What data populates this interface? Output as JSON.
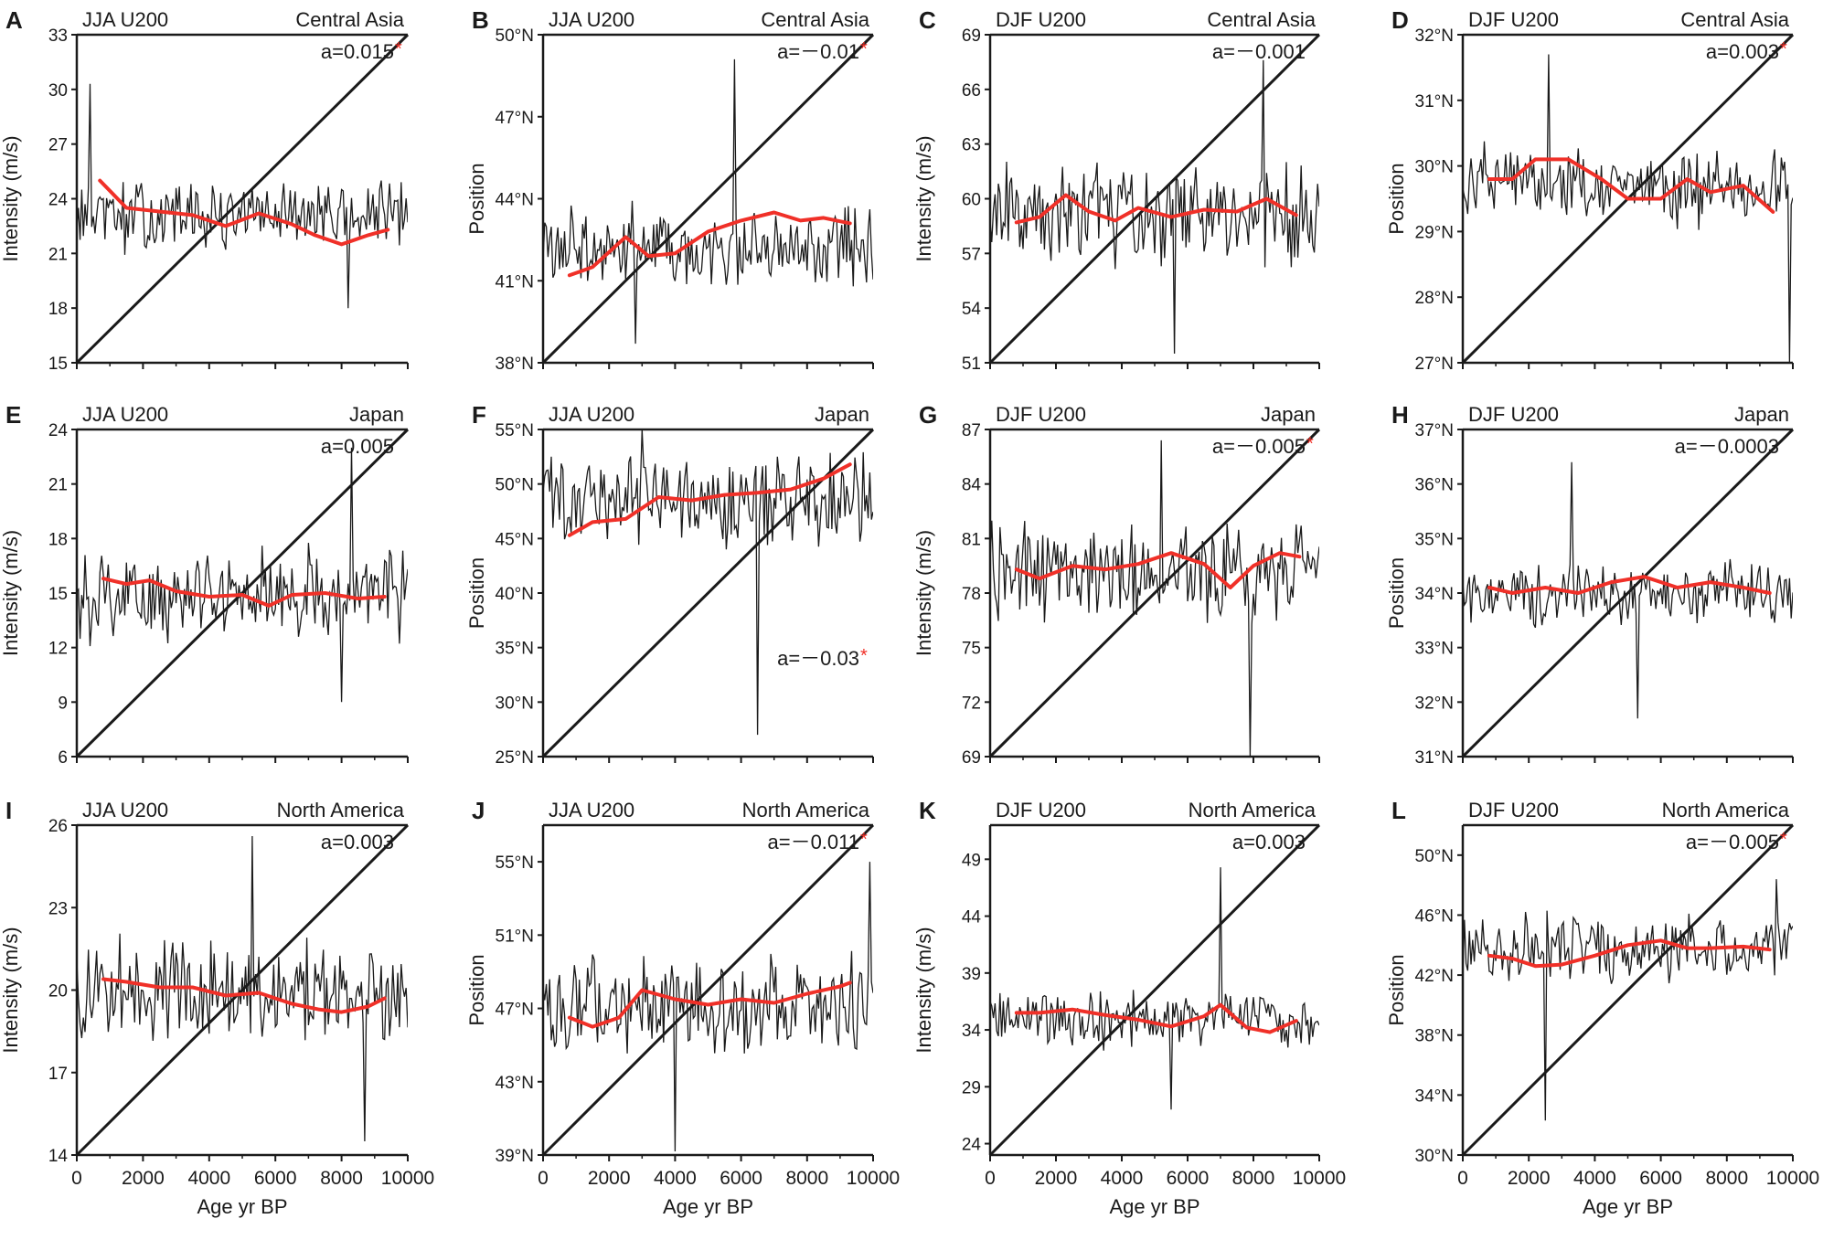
{
  "figure": {
    "xlabel": "Age yr BP"
  },
  "colors": {
    "series": "#1a1a1a",
    "smooth": "#f03028",
    "axis": "#1a1a1a",
    "star": "#f03028"
  },
  "chart_data": [
    {
      "letter": "A",
      "season": "JJA U200",
      "region": "Central Asia",
      "type": "line",
      "ylabel": "Intensity (m/s)",
      "yunit": "",
      "yticks": [
        15,
        18,
        21,
        24,
        27,
        30,
        33
      ],
      "xticks": [
        0,
        2000,
        4000,
        6000,
        8000,
        10000
      ],
      "xlim": [
        0,
        10000
      ],
      "ylim": [
        15,
        33
      ],
      "coef": "a=0.015",
      "star": true,
      "coef_pos": "top",
      "show_x": false,
      "series": {
        "base": 23,
        "amp": 2.3,
        "spike_hi": 30.3,
        "spike_hi_x": 400,
        "spike_lo": 18,
        "spike_lo_x": 8200
      },
      "smooth": [
        [
          700,
          25.0
        ],
        [
          1500,
          23.5
        ],
        [
          2500,
          23.3
        ],
        [
          3500,
          23.1
        ],
        [
          4500,
          22.5
        ],
        [
          5500,
          23.2
        ],
        [
          6500,
          22.6
        ],
        [
          7200,
          22.0
        ],
        [
          8000,
          21.5
        ],
        [
          8800,
          22.0
        ],
        [
          9400,
          22.3
        ]
      ]
    },
    {
      "letter": "B",
      "season": "JJA U200",
      "region": "Central Asia",
      "type": "line",
      "ylabel": "Position",
      "yunit": "°N",
      "yticks": [
        38,
        41,
        44,
        47,
        50
      ],
      "xticks": [
        0,
        2000,
        4000,
        6000,
        8000,
        10000
      ],
      "xlim": [
        0,
        10000
      ],
      "ylim": [
        38,
        50
      ],
      "coef": "a=－0.01",
      "star": true,
      "coef_pos": "top",
      "show_x": false,
      "series": {
        "base": 42.3,
        "amp": 1.7,
        "spike_hi": 49.1,
        "spike_hi_x": 5800,
        "spike_lo": 38.7,
        "spike_lo_x": 2800
      },
      "smooth": [
        [
          800,
          41.2
        ],
        [
          1500,
          41.5
        ],
        [
          2500,
          42.6
        ],
        [
          3200,
          41.9
        ],
        [
          4000,
          42.0
        ],
        [
          5000,
          42.8
        ],
        [
          6000,
          43.2
        ],
        [
          7000,
          43.5
        ],
        [
          7800,
          43.2
        ],
        [
          8500,
          43.3
        ],
        [
          9300,
          43.1
        ]
      ]
    },
    {
      "letter": "C",
      "season": "DJF U200",
      "region": "Central Asia",
      "type": "line",
      "ylabel": "Intensity (m/s)",
      "yunit": "",
      "yticks": [
        51,
        54,
        57,
        60,
        63,
        66,
        69
      ],
      "xticks": [
        0,
        2000,
        4000,
        6000,
        8000,
        10000
      ],
      "xlim": [
        0,
        10000
      ],
      "ylim": [
        51,
        69
      ],
      "coef": "a=－0.001",
      "star": false,
      "coef_pos": "top",
      "show_x": false,
      "series": {
        "base": 59.2,
        "amp": 3.3,
        "spike_hi": 67.6,
        "spike_hi_x": 8300,
        "spike_lo": 51.5,
        "spike_lo_x": 5600
      },
      "smooth": [
        [
          800,
          58.7
        ],
        [
          1500,
          59.0
        ],
        [
          2300,
          60.2
        ],
        [
          3000,
          59.3
        ],
        [
          3800,
          58.8
        ],
        [
          4500,
          59.5
        ],
        [
          5500,
          59.0
        ],
        [
          6500,
          59.4
        ],
        [
          7500,
          59.3
        ],
        [
          8400,
          60.0
        ],
        [
          9300,
          59.1
        ]
      ]
    },
    {
      "letter": "D",
      "season": "DJF U200",
      "region": "Central Asia",
      "type": "line",
      "ylabel": "Position",
      "yunit": "°N",
      "yticks": [
        27,
        28,
        29,
        30,
        31,
        32
      ],
      "xticks": [
        0,
        2000,
        4000,
        6000,
        8000,
        10000
      ],
      "xlim": [
        0,
        10000
      ],
      "ylim": [
        27,
        32
      ],
      "coef": "a=0.003",
      "star": true,
      "coef_pos": "top",
      "show_x": false,
      "series": {
        "base": 29.7,
        "amp": 0.7,
        "spike_hi": 31.7,
        "spike_hi_x": 2600,
        "spike_lo": 27.0,
        "spike_lo_x": 9900
      },
      "smooth": [
        [
          800,
          29.8
        ],
        [
          1500,
          29.8
        ],
        [
          2200,
          30.1
        ],
        [
          3200,
          30.1
        ],
        [
          4200,
          29.8
        ],
        [
          5000,
          29.5
        ],
        [
          6000,
          29.5
        ],
        [
          6800,
          29.8
        ],
        [
          7500,
          29.6
        ],
        [
          8500,
          29.7
        ],
        [
          9400,
          29.3
        ]
      ]
    },
    {
      "letter": "E",
      "season": "JJA U200",
      "region": "Japan",
      "type": "line",
      "ylabel": "Intensity (m/s)",
      "yunit": "",
      "yticks": [
        6,
        9,
        12,
        15,
        18,
        21,
        24
      ],
      "xticks": [
        0,
        2000,
        4000,
        6000,
        8000,
        10000
      ],
      "xlim": [
        0,
        10000
      ],
      "ylim": [
        6,
        24
      ],
      "coef": "a=0.005",
      "star": false,
      "coef_pos": "top",
      "show_x": false,
      "series": {
        "base": 15,
        "amp": 3.0,
        "spike_hi": 23.0,
        "spike_hi_x": 8300,
        "spike_lo": 9.0,
        "spike_lo_x": 8000
      },
      "smooth": [
        [
          800,
          15.8
        ],
        [
          1500,
          15.5
        ],
        [
          2200,
          15.7
        ],
        [
          3000,
          15.1
        ],
        [
          4000,
          14.8
        ],
        [
          5000,
          14.9
        ],
        [
          5800,
          14.3
        ],
        [
          6500,
          14.9
        ],
        [
          7500,
          15.0
        ],
        [
          8500,
          14.7
        ],
        [
          9300,
          14.8
        ]
      ]
    },
    {
      "letter": "F",
      "season": "JJA U200",
      "region": "Japan",
      "type": "line",
      "ylabel": "Position",
      "yunit": "°N",
      "yticks": [
        25,
        30,
        35,
        40,
        45,
        50,
        55
      ],
      "xticks": [
        0,
        2000,
        4000,
        6000,
        8000,
        10000
      ],
      "xlim": [
        0,
        10000
      ],
      "ylim": [
        25,
        55
      ],
      "coef": "a=－0.03",
      "star": true,
      "coef_pos": "mid",
      "show_x": false,
      "series": {
        "base": 48.5,
        "amp": 5.0,
        "spike_hi": 55,
        "spike_hi_x": 3000,
        "spike_lo": 27,
        "spike_lo_x": 6500
      },
      "smooth": [
        [
          800,
          45.3
        ],
        [
          1500,
          46.5
        ],
        [
          2500,
          46.8
        ],
        [
          3500,
          48.8
        ],
        [
          4500,
          48.5
        ],
        [
          5500,
          49.0
        ],
        [
          6500,
          49.2
        ],
        [
          7500,
          49.5
        ],
        [
          8500,
          50.5
        ],
        [
          9300,
          51.8
        ]
      ]
    },
    {
      "letter": "G",
      "season": "DJF U200",
      "region": "Japan",
      "type": "line",
      "ylabel": "Intensity (m/s)",
      "yunit": "",
      "yticks": [
        69,
        72,
        75,
        78,
        81,
        84,
        87
      ],
      "xticks": [
        0,
        2000,
        4000,
        6000,
        8000,
        10000
      ],
      "xlim": [
        0,
        10000
      ],
      "ylim": [
        69,
        87
      ],
      "coef": "a=－0.005",
      "star": true,
      "coef_pos": "top",
      "show_x": false,
      "series": {
        "base": 79.2,
        "amp": 3.2,
        "spike_hi": 86.4,
        "spike_hi_x": 5200,
        "spike_lo": 69.0,
        "spike_lo_x": 7900
      },
      "smooth": [
        [
          800,
          79.3
        ],
        [
          1500,
          78.8
        ],
        [
          2500,
          79.5
        ],
        [
          3500,
          79.3
        ],
        [
          4500,
          79.6
        ],
        [
          5500,
          80.2
        ],
        [
          6500,
          79.6
        ],
        [
          7300,
          78.3
        ],
        [
          8000,
          79.5
        ],
        [
          8800,
          80.2
        ],
        [
          9400,
          80.0
        ]
      ]
    },
    {
      "letter": "H",
      "season": "DJF U200",
      "region": "Japan",
      "type": "line",
      "ylabel": "Position",
      "yunit": "°N",
      "yticks": [
        31,
        32,
        33,
        34,
        35,
        36,
        37
      ],
      "xticks": [
        0,
        2000,
        4000,
        6000,
        8000,
        10000
      ],
      "xlim": [
        0,
        10000
      ],
      "ylim": [
        31,
        37
      ],
      "coef": "a=－0.0003",
      "star": false,
      "coef_pos": "top",
      "show_x": false,
      "series": {
        "base": 34.0,
        "amp": 0.7,
        "spike_hi": 36.4,
        "spike_hi_x": 3300,
        "spike_lo": 31.7,
        "spike_lo_x": 5300
      },
      "smooth": [
        [
          800,
          34.1
        ],
        [
          1500,
          34.0
        ],
        [
          2500,
          34.1
        ],
        [
          3500,
          34.0
        ],
        [
          4500,
          34.2
        ],
        [
          5500,
          34.3
        ],
        [
          6500,
          34.1
        ],
        [
          7500,
          34.2
        ],
        [
          8500,
          34.1
        ],
        [
          9300,
          34.0
        ]
      ]
    },
    {
      "letter": "I",
      "season": "JJA U200",
      "region": "North America",
      "type": "line",
      "ylabel": "Intensity (m/s)",
      "yunit": "",
      "yticks": [
        14,
        17,
        20,
        23,
        26
      ],
      "xticks": [
        0,
        2000,
        4000,
        6000,
        8000,
        10000
      ],
      "xlim": [
        0,
        10000
      ],
      "ylim": [
        14,
        26
      ],
      "coef": "a=0.003",
      "star": false,
      "coef_pos": "top",
      "show_x": true,
      "series": {
        "base": 20.0,
        "amp": 2.2,
        "spike_hi": 25.6,
        "spike_hi_x": 5300,
        "spike_lo": 14.5,
        "spike_lo_x": 8700
      },
      "smooth": [
        [
          800,
          20.4
        ],
        [
          1500,
          20.3
        ],
        [
          2500,
          20.1
        ],
        [
          3500,
          20.1
        ],
        [
          4500,
          19.8
        ],
        [
          5500,
          19.9
        ],
        [
          6500,
          19.5
        ],
        [
          7300,
          19.3
        ],
        [
          8000,
          19.2
        ],
        [
          8800,
          19.4
        ],
        [
          9300,
          19.7
        ]
      ]
    },
    {
      "letter": "J",
      "season": "JJA U200",
      "region": "North America",
      "type": "line",
      "ylabel": "Position",
      "yunit": "°N",
      "yticks": [
        39,
        43,
        47,
        51,
        55
      ],
      "xticks": [
        0,
        2000,
        4000,
        6000,
        8000,
        10000
      ],
      "xlim": [
        0,
        10000
      ],
      "ylim": [
        39,
        57
      ],
      "coef": "a=－0.011",
      "star": true,
      "coef_pos": "top",
      "show_x": true,
      "series": {
        "base": 47.2,
        "amp": 3.2,
        "spike_hi": 55.0,
        "spike_hi_x": 9900,
        "spike_lo": 39.2,
        "spike_lo_x": 4000
      },
      "smooth": [
        [
          800,
          46.5
        ],
        [
          1500,
          46.0
        ],
        [
          2300,
          46.5
        ],
        [
          3000,
          48.0
        ],
        [
          4000,
          47.5
        ],
        [
          5000,
          47.2
        ],
        [
          6000,
          47.5
        ],
        [
          7000,
          47.3
        ],
        [
          8000,
          47.8
        ],
        [
          9000,
          48.2
        ],
        [
          9300,
          48.4
        ]
      ]
    },
    {
      "letter": "K",
      "season": "DJF U200",
      "region": "North America",
      "type": "line",
      "ylabel": "Intensity (m/s)",
      "yunit": "",
      "yticks": [
        24,
        29,
        34,
        39,
        44,
        49
      ],
      "xticks": [
        0,
        2000,
        4000,
        6000,
        8000,
        10000
      ],
      "xlim": [
        0,
        10000
      ],
      "ylim": [
        23,
        52
      ],
      "coef": "a=0.003",
      "star": false,
      "coef_pos": "top",
      "show_x": true,
      "series": {
        "base": 35.0,
        "amp": 3.0,
        "spike_hi": 48.3,
        "spike_hi_x": 7000,
        "spike_lo": 27.0,
        "spike_lo_x": 5500
      },
      "smooth": [
        [
          800,
          35.5
        ],
        [
          1500,
          35.5
        ],
        [
          2500,
          35.8
        ],
        [
          3500,
          35.3
        ],
        [
          4500,
          34.9
        ],
        [
          5500,
          34.3
        ],
        [
          6500,
          35.2
        ],
        [
          7000,
          36.2
        ],
        [
          7800,
          34.2
        ],
        [
          8500,
          33.8
        ],
        [
          9300,
          34.8
        ]
      ]
    },
    {
      "letter": "L",
      "season": "DJF U200",
      "region": "North America",
      "type": "line",
      "ylabel": "Position",
      "yunit": "°N",
      "yticks": [
        30,
        34,
        38,
        42,
        46,
        50
      ],
      "xticks": [
        0,
        2000,
        4000,
        6000,
        8000,
        10000
      ],
      "xlim": [
        0,
        10000
      ],
      "ylim": [
        30,
        52
      ],
      "coef": "a=－0.005",
      "star": true,
      "coef_pos": "top",
      "show_x": true,
      "series": {
        "base": 43.8,
        "amp": 2.6,
        "spike_hi": 48.4,
        "spike_hi_x": 9500,
        "spike_lo": 32.3,
        "spike_lo_x": 2500
      },
      "smooth": [
        [
          800,
          43.3
        ],
        [
          1500,
          43.1
        ],
        [
          2200,
          42.6
        ],
        [
          3000,
          42.7
        ],
        [
          4000,
          43.3
        ],
        [
          5000,
          44.0
        ],
        [
          6000,
          44.3
        ],
        [
          6800,
          43.8
        ],
        [
          7500,
          43.8
        ],
        [
          8500,
          43.9
        ],
        [
          9300,
          43.7
        ]
      ]
    }
  ]
}
